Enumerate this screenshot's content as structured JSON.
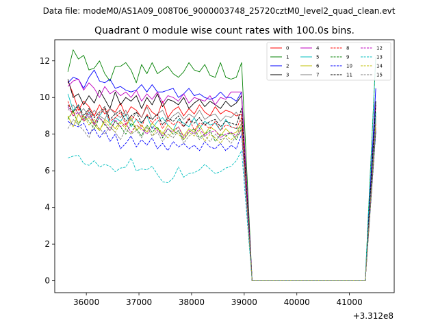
{
  "chart_data": {
    "type": "line",
    "suptitle": "Data file: modeM0/AS1A09_008T06_9000003748_25720cztM0_level2_quad_clean.evt",
    "title": "Quadrant 0 module wise count rates with 100.0s bins.",
    "xlabel": "",
    "ylabel": "",
    "x_offset_label": "+3.312e8",
    "xlim": [
      35400,
      41850
    ],
    "ylim": [
      -0.65,
      13.15
    ],
    "xticks": [
      36000,
      37000,
      38000,
      39000,
      40000,
      41000
    ],
    "xtick_labels": [
      "36000",
      "37000",
      "38000",
      "39000",
      "40000",
      "41000"
    ],
    "yticks": [
      0,
      2,
      4,
      6,
      8,
      10,
      12
    ],
    "ytick_labels": [
      "0",
      "2",
      "4",
      "6",
      "8",
      "10",
      "12"
    ],
    "grid": false,
    "legend_location": "top-right",
    "legend_columns": 4,
    "x": {
      "start": 35650,
      "stop": 38950,
      "step": 100,
      "gap_start": 39150,
      "gap_end": 41300,
      "end": 41500
    },
    "series": [
      {
        "name": "0",
        "color": "#ff0000",
        "style": "solid",
        "values": [
          10.9,
          10.2,
          9.3,
          9.8,
          9.5,
          9.0,
          9.6,
          9.1,
          9.4,
          9.2,
          9.7,
          9.0,
          9.5,
          9.3,
          8.9,
          9.6,
          9.2,
          9.0,
          9.8,
          8.9,
          9.3,
          9.5,
          9.0,
          9.4,
          9.1,
          9.6,
          9.2,
          9.0,
          9.5,
          9.1,
          9.3,
          9.2,
          9.0,
          9.1
        ],
        "end": 9.0
      },
      {
        "name": "1",
        "color": "#008000",
        "style": "solid",
        "values": [
          11.4,
          12.6,
          12.1,
          12.3,
          11.5,
          11.6,
          12.0,
          11.3,
          10.9,
          11.7,
          11.7,
          11.9,
          11.5,
          10.8,
          11.8,
          11.3,
          11.9,
          11.3,
          11.5,
          11.7,
          11.3,
          11.1,
          11.4,
          11.9,
          11.5,
          11.4,
          11.8,
          11.2,
          11.1,
          11.9,
          11.1,
          11.0,
          11.1,
          11.9
        ],
        "end": 12.2
      },
      {
        "name": "2",
        "color": "#0000ff",
        "style": "solid",
        "values": [
          10.8,
          11.1,
          11.0,
          10.5,
          11.1,
          11.5,
          10.9,
          10.8,
          11.0,
          10.5,
          10.6,
          10.4,
          10.3,
          10.4,
          10.7,
          10.3,
          10.7,
          10.3,
          10.3,
          10.4,
          10.5,
          10.0,
          10.2,
          10.5,
          10.1,
          10.2,
          10.0,
          9.9,
          10.0,
          10.3,
          10.0,
          10.0,
          9.8,
          10.3
        ],
        "end": 10.5
      },
      {
        "name": "3",
        "color": "#000000",
        "style": "solid",
        "values": [
          11.0,
          10.0,
          10.2,
          9.6,
          10.1,
          9.7,
          10.4,
          9.9,
          9.4,
          10.3,
          9.6,
          10.0,
          9.8,
          10.1,
          9.4,
          10.0,
          9.6,
          10.2,
          9.5,
          9.9,
          9.8,
          9.6,
          10.0,
          9.4,
          9.7,
          9.9,
          9.5,
          9.8,
          9.6,
          9.4,
          9.8,
          9.5,
          9.7,
          10.1
        ],
        "end": 9.8
      },
      {
        "name": "4",
        "color": "#bf00bf",
        "style": "solid",
        "values": [
          10.6,
          10.9,
          11.0,
          10.4,
          10.8,
          10.5,
          10.0,
          10.6,
          10.2,
          10.4,
          10.1,
          10.3,
          10.0,
          10.4,
          9.8,
          10.2,
          9.9,
          10.3,
          9.7,
          10.1,
          10.0,
          9.8,
          10.2,
          9.7,
          10.0,
          9.9,
          9.8,
          10.1,
          9.6,
          10.0,
          9.9,
          10.3,
          10.3,
          10.3
        ],
        "end": 9.6
      },
      {
        "name": "5",
        "color": "#00bfbf",
        "style": "solid",
        "values": [
          10.2,
          9.3,
          9.6,
          8.8,
          9.2,
          8.6,
          9.0,
          9.4,
          8.5,
          8.9,
          8.7,
          9.1,
          8.4,
          8.8,
          8.6,
          9.0,
          8.3,
          8.7,
          8.9,
          8.5,
          8.2,
          8.8,
          8.6,
          8.4,
          8.9,
          8.3,
          8.7,
          8.5,
          8.6,
          8.2,
          8.8,
          8.4,
          8.3,
          8.4
        ],
        "end": 9.2
      },
      {
        "name": "6",
        "color": "#bfbf00",
        "style": "solid",
        "values": [
          9.0,
          8.4,
          9.1,
          8.7,
          8.9,
          8.5,
          8.2,
          8.8,
          8.6,
          8.3,
          8.7,
          8.4,
          8.9,
          8.2,
          8.5,
          8.1,
          8.6,
          8.3,
          8.0,
          8.5,
          8.2,
          8.4,
          7.9,
          8.3,
          8.1,
          8.5,
          8.0,
          8.4,
          8.2,
          7.9,
          8.3,
          8.0,
          8.1,
          8.6
        ],
        "end": 8.3
      },
      {
        "name": "7",
        "color": "#808080",
        "style": "solid",
        "values": [
          9.3,
          9.6,
          9.1,
          9.4,
          8.9,
          9.3,
          9.0,
          8.8,
          9.4,
          9.1,
          8.9,
          9.3,
          8.7,
          9.2,
          8.9,
          9.5,
          8.8,
          9.1,
          9.3,
          8.7,
          9.0,
          9.2,
          8.8,
          9.1,
          8.9,
          9.3,
          8.8,
          9.0,
          9.1,
          8.7,
          9.0,
          8.9,
          9.2,
          8.6
        ],
        "end": 8.7
      },
      {
        "name": "8",
        "color": "#ff0000",
        "style": "dashed",
        "values": [
          9.8,
          9.0,
          9.5,
          8.8,
          9.3,
          8.6,
          9.1,
          9.4,
          8.7,
          8.9,
          9.2,
          8.5,
          9.0,
          8.8,
          8.4,
          9.1,
          8.6,
          8.9,
          8.3,
          8.8,
          8.5,
          8.7,
          8.4,
          8.9,
          8.2,
          8.6,
          8.5,
          8.3,
          8.7,
          8.2,
          8.5,
          8.4,
          8.3,
          8.9
        ],
        "end": 8.6
      },
      {
        "name": "9",
        "color": "#008000",
        "style": "dashed",
        "values": [
          8.8,
          9.3,
          8.5,
          9.0,
          8.7,
          8.3,
          8.9,
          8.5,
          8.2,
          8.7,
          8.4,
          8.0,
          8.6,
          8.3,
          7.9,
          8.5,
          8.1,
          8.4,
          7.8,
          8.3,
          8.0,
          8.2,
          7.7,
          8.1,
          8.3,
          7.8,
          8.0,
          8.2,
          7.6,
          8.0,
          7.9,
          8.1,
          7.7,
          8.3
        ],
        "end": 8.1
      },
      {
        "name": "10",
        "color": "#0000ff",
        "style": "dashed",
        "values": [
          8.7,
          8.5,
          8.4,
          8.6,
          8.0,
          8.3,
          7.8,
          8.2,
          7.6,
          8.0,
          7.2,
          7.5,
          7.9,
          7.3,
          7.7,
          7.4,
          7.8,
          7.2,
          7.5,
          7.1,
          7.6,
          7.3,
          7.5,
          7.2,
          7.4,
          7.1,
          7.6,
          7.3,
          7.2,
          7.5,
          7.1,
          7.4,
          7.2,
          8.0
        ],
        "end": 8.2
      },
      {
        "name": "11",
        "color": "#000000",
        "style": "dashed",
        "values": [
          9.6,
          9.2,
          9.6,
          9.0,
          9.4,
          8.9,
          9.2,
          9.5,
          8.8,
          9.1,
          9.3,
          8.7,
          9.0,
          9.2,
          8.6,
          9.0,
          8.8,
          9.1,
          8.5,
          8.9,
          8.7,
          9.0,
          8.4,
          8.8,
          8.6,
          8.9,
          8.5,
          8.7,
          8.8,
          8.4,
          8.7,
          8.6,
          8.5,
          9.4
        ],
        "end": 9.6
      },
      {
        "name": "12",
        "color": "#bf00bf",
        "style": "dashed",
        "values": [
          9.5,
          9.0,
          9.2,
          8.7,
          9.1,
          8.5,
          8.9,
          8.6,
          8.2,
          8.8,
          8.4,
          8.6,
          8.1,
          8.5,
          8.3,
          8.0,
          8.4,
          8.2,
          7.9,
          8.3,
          8.1,
          8.4,
          7.8,
          8.2,
          8.0,
          8.3,
          7.9,
          8.1,
          8.2,
          7.8,
          8.0,
          8.1,
          7.9,
          8.2
        ],
        "end": 8.4
      },
      {
        "name": "13",
        "color": "#00bfbf",
        "style": "dashed",
        "values": [
          6.7,
          6.8,
          6.85,
          6.4,
          6.3,
          6.55,
          6.2,
          6.35,
          6.25,
          5.95,
          6.15,
          6.2,
          6.7,
          6.0,
          6.1,
          6.05,
          6.25,
          5.8,
          5.4,
          5.35,
          5.6,
          6.2,
          5.65,
          5.85,
          5.9,
          6.05,
          6.35,
          6.1,
          5.85,
          5.95,
          6.15,
          6.25,
          6.55,
          7.1
        ],
        "end": 12.2
      },
      {
        "name": "14",
        "color": "#bfbf00",
        "style": "dashed",
        "values": [
          8.9,
          9.2,
          8.6,
          9.0,
          8.5,
          8.8,
          8.2,
          8.7,
          8.4,
          8.1,
          8.6,
          8.3,
          8.0,
          8.5,
          8.2,
          8.4,
          7.9,
          8.3,
          8.1,
          7.8,
          8.2,
          8.0,
          7.7,
          8.1,
          7.9,
          8.2,
          7.6,
          8.0,
          7.8,
          7.5,
          7.9,
          7.7,
          7.9,
          8.4
        ],
        "end": 8.5
      },
      {
        "name": "15",
        "color": "#808080",
        "style": "dashed",
        "values": [
          8.3,
          8.8,
          8.5,
          8.2,
          7.8,
          8.6,
          8.3,
          8.0,
          8.4,
          8.1,
          7.7,
          8.3,
          8.0,
          8.2,
          7.8,
          8.4,
          7.9,
          8.1,
          7.6,
          8.0,
          7.8,
          8.2,
          7.5,
          7.9,
          8.1,
          7.7,
          7.9,
          7.6,
          8.0,
          7.7,
          7.8,
          7.5,
          7.9,
          8.6
        ],
        "end": 8.8
      }
    ]
  }
}
